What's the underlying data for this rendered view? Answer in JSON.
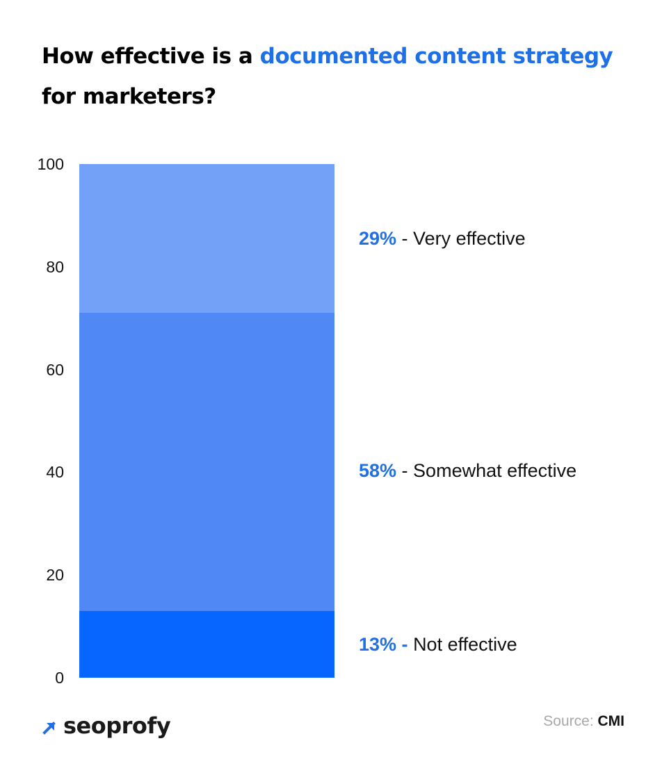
{
  "title": {
    "prefix": "How effective is a ",
    "highlight": "documented content strategy",
    "suffix": " for marketers?"
  },
  "brand": {
    "name": "seoprofy"
  },
  "source": {
    "label": "Source:",
    "name": "CMI"
  },
  "colors": {
    "highlight": "#1f6fe5",
    "very_effective": "#73a1f7",
    "somewhat_effective": "#5088f5",
    "not_effective": "#0666ff"
  },
  "chart_data": {
    "type": "bar",
    "stacked": true,
    "categories": [
      ""
    ],
    "ylim": [
      0,
      100
    ],
    "yticks": [
      "0",
      "20",
      "40",
      "60",
      "80",
      "100"
    ],
    "series": [
      {
        "name": "Not effective",
        "pct_label": "13% -",
        "values": [
          13
        ],
        "color": "#0666ff"
      },
      {
        "name": "Somewhat effective",
        "pct_label": "58%",
        "values": [
          58
        ],
        "color": "#5088f5"
      },
      {
        "name": "Very effective",
        "pct_label": "29%",
        "values": [
          29
        ],
        "color": "#73a1f7"
      }
    ],
    "grid": false,
    "legend": "right"
  }
}
